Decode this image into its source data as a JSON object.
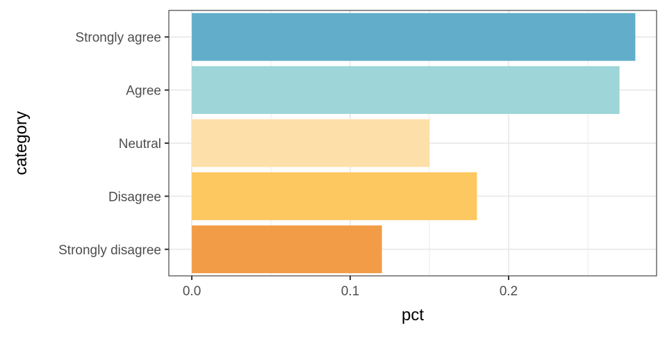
{
  "chart_data": {
    "type": "bar",
    "orientation": "horizontal",
    "categories": [
      "Strongly agree",
      "Agree",
      "Neutral",
      "Disagree",
      "Strongly disagree"
    ],
    "values": [
      0.28,
      0.27,
      0.15,
      0.18,
      0.12
    ],
    "colors": [
      "#62AECA",
      "#9DD5D8",
      "#FDE0A9",
      "#FDC85F",
      "#F39C47"
    ],
    "xlabel": "pct",
    "ylabel": "category",
    "xlim": [
      -0.0145,
      0.2934
    ],
    "xticks": [
      0.0,
      0.1,
      0.2
    ],
    "xtick_labels": [
      "0.0",
      "0.1",
      "0.2"
    ],
    "grid": true,
    "theme": "bw"
  }
}
